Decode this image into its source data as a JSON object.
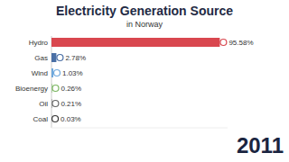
{
  "chart_data": {
    "type": "bar",
    "orientation": "horizontal",
    "title": "Electricity Generation Source",
    "subtitle": "in Norway",
    "categories": [
      "Hydro",
      "Gas",
      "Wind",
      "Bioenergy",
      "Oil",
      "Coal"
    ],
    "values": [
      95.58,
      2.78,
      1.03,
      0.26,
      0.21,
      0.03
    ],
    "value_labels": [
      "95.58%",
      "2.78%",
      "1.03%",
      "0.26%",
      "0.21%",
      "0.03%"
    ],
    "colors": [
      "#d9474f",
      "#4a6fa5",
      "#6fa8dc",
      "#7bb662",
      "#666666",
      "#333333"
    ],
    "xlim": [
      0,
      100
    ],
    "data_labels": true,
    "tick_labels": "y",
    "grid": false,
    "annotations": [
      "2011"
    ]
  }
}
